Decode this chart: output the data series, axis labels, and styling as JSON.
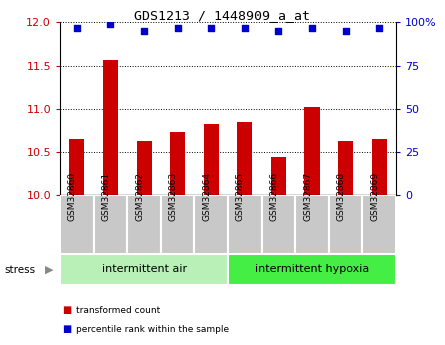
{
  "title": "GDS1213 / 1448909_a_at",
  "samples": [
    "GSM32860",
    "GSM32861",
    "GSM32862",
    "GSM32863",
    "GSM32864",
    "GSM32865",
    "GSM32866",
    "GSM32867",
    "GSM32868",
    "GSM32869"
  ],
  "bar_values": [
    10.65,
    11.57,
    10.62,
    10.73,
    10.82,
    10.84,
    10.44,
    11.02,
    10.62,
    10.65
  ],
  "percentile_values": [
    97,
    99,
    95,
    97,
    97,
    97,
    95,
    97,
    95,
    97
  ],
  "bar_color": "#cc0000",
  "dot_color": "#0000cc",
  "ylim_left": [
    10,
    12
  ],
  "ylim_right": [
    0,
    100
  ],
  "yticks_left": [
    10,
    10.5,
    11,
    11.5,
    12
  ],
  "yticks_right": [
    0,
    25,
    50,
    75,
    100
  ],
  "group1_label": "intermittent air",
  "group2_label": "intermittent hypoxia",
  "group1_count": 5,
  "group2_count": 5,
  "stress_label": "stress",
  "legend1": "transformed count",
  "legend2": "percentile rank within the sample",
  "group_bg_color_light": "#b8f0b8",
  "group_bg_color_bright": "#44ee44",
  "sample_bg_color": "#c8c8c8",
  "dot_color_hex": "#0000cc",
  "bar_color_hex": "#cc0000"
}
